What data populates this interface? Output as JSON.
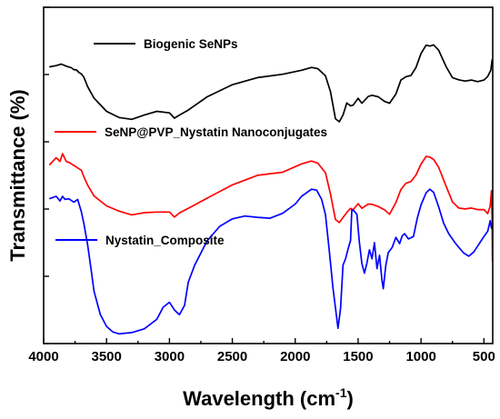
{
  "chart_data": {
    "type": "line",
    "xlabel": "Wavelength (cm",
    "xlabel_sup": "-1",
    "xlabel_end": ")",
    "ylabel": "Transmittance (%)",
    "xlim": [
      4000,
      430
    ],
    "ylim": [
      0,
      100
    ],
    "x_reversed": true,
    "y_tick_labels": false,
    "grid": false,
    "legend": "inline",
    "x_ticks": [
      4000,
      3500,
      3000,
      2500,
      2000,
      1500,
      1000,
      500
    ],
    "x_tick_labels": [
      "4000",
      "3500",
      "3000",
      "2500",
      "2000",
      "1500",
      "1000",
      "500"
    ],
    "series": [
      {
        "name": "Biogenic SeNPs",
        "color": "#000000",
        "points": [
          [
            3950,
            87.2
          ],
          [
            3900,
            87.6
          ],
          [
            3860,
            88.1
          ],
          [
            3820,
            87.4
          ],
          [
            3780,
            86.9
          ],
          [
            3760,
            86.3
          ],
          [
            3740,
            86.2
          ],
          [
            3720,
            85.4
          ],
          [
            3700,
            84.9
          ],
          [
            3680,
            83.8
          ],
          [
            3650,
            80.8
          ],
          [
            3600,
            77.1
          ],
          [
            3500,
            72.8
          ],
          [
            3400,
            70.8
          ],
          [
            3300,
            70.2
          ],
          [
            3200,
            71.6
          ],
          [
            3100,
            72.8
          ],
          [
            3000,
            72.3
          ],
          [
            2960,
            70.6
          ],
          [
            2920,
            71.6
          ],
          [
            2850,
            73.2
          ],
          [
            2700,
            77.5
          ],
          [
            2500,
            81.4
          ],
          [
            2300,
            83.7
          ],
          [
            2100,
            84.8
          ],
          [
            1950,
            86.1
          ],
          [
            1870,
            87.0
          ],
          [
            1820,
            86.6
          ],
          [
            1760,
            84.3
          ],
          [
            1720,
            79.2
          ],
          [
            1680,
            70.4
          ],
          [
            1650,
            69.4
          ],
          [
            1620,
            71.6
          ],
          [
            1590,
            75.5
          ],
          [
            1560,
            74.6
          ],
          [
            1540,
            74.8
          ],
          [
            1500,
            77.0
          ],
          [
            1470,
            75.4
          ],
          [
            1420,
            77.6
          ],
          [
            1390,
            78.0
          ],
          [
            1340,
            77.5
          ],
          [
            1290,
            76.0
          ],
          [
            1250,
            75.4
          ],
          [
            1200,
            78.4
          ],
          [
            1160,
            82.9
          ],
          [
            1120,
            84.0
          ],
          [
            1080,
            84.4
          ],
          [
            1040,
            87.0
          ],
          [
            1000,
            91.5
          ],
          [
            960,
            94.2
          ],
          [
            930,
            93.9
          ],
          [
            900,
            94.3
          ],
          [
            860,
            92.6
          ],
          [
            800,
            87.2
          ],
          [
            750,
            83.7
          ],
          [
            700,
            83.0
          ],
          [
            650,
            82.6
          ],
          [
            600,
            82.9
          ],
          [
            550,
            82.4
          ],
          [
            500,
            82.9
          ],
          [
            470,
            84.1
          ],
          [
            445,
            86.1
          ],
          [
            435,
            89.4
          ]
        ]
      },
      {
        "name": "SeNP@PVP_Nystatin Nanoconjugates",
        "color": "#ff0000",
        "points": [
          [
            3950,
            55.6
          ],
          [
            3900,
            57.8
          ],
          [
            3870,
            56.6
          ],
          [
            3850,
            59.1
          ],
          [
            3820,
            56.6
          ],
          [
            3790,
            56.1
          ],
          [
            3760,
            55.3
          ],
          [
            3730,
            54.5
          ],
          [
            3700,
            53.7
          ],
          [
            3680,
            51.6
          ],
          [
            3650,
            48.9
          ],
          [
            3600,
            45.4
          ],
          [
            3500,
            42.2
          ],
          [
            3400,
            40.5
          ],
          [
            3300,
            39.3
          ],
          [
            3200,
            40.0
          ],
          [
            3100,
            40.2
          ],
          [
            3000,
            40.2
          ],
          [
            2960,
            38.6
          ],
          [
            2920,
            39.9
          ],
          [
            2850,
            41.4
          ],
          [
            2700,
            44.7
          ],
          [
            2500,
            49.0
          ],
          [
            2300,
            52.1
          ],
          [
            2100,
            53.1
          ],
          [
            1950,
            55.8
          ],
          [
            1870,
            56.7
          ],
          [
            1820,
            56.0
          ],
          [
            1760,
            52.9
          ],
          [
            1720,
            46.1
          ],
          [
            1680,
            37.8
          ],
          [
            1650,
            36.8
          ],
          [
            1620,
            38.4
          ],
          [
            1590,
            40.1
          ],
          [
            1560,
            41.4
          ],
          [
            1540,
            40.9
          ],
          [
            1500,
            42.9
          ],
          [
            1470,
            41.4
          ],
          [
            1420,
            42.8
          ],
          [
            1390,
            42.7
          ],
          [
            1340,
            42.0
          ],
          [
            1290,
            40.9
          ],
          [
            1250,
            39.5
          ],
          [
            1200,
            43.3
          ],
          [
            1160,
            47.5
          ],
          [
            1120,
            49.5
          ],
          [
            1080,
            50.1
          ],
          [
            1040,
            52.2
          ],
          [
            1000,
            55.7
          ],
          [
            960,
            58.2
          ],
          [
            930,
            58.0
          ],
          [
            900,
            57.2
          ],
          [
            860,
            54.7
          ],
          [
            800,
            48.5
          ],
          [
            750,
            43.5
          ],
          [
            700,
            41.5
          ],
          [
            650,
            41.2
          ],
          [
            600,
            41.5
          ],
          [
            550,
            41.0
          ],
          [
            500,
            41.0
          ],
          [
            470,
            39.7
          ],
          [
            450,
            42.1
          ],
          [
            440,
            47.1
          ],
          [
            435,
            38.0
          ],
          [
            432,
            24.4
          ]
        ]
      },
      {
        "name": "Nystatin_Composite",
        "color": "#0000ff",
        "points": [
          [
            3950,
            44.6
          ],
          [
            3900,
            45.3
          ],
          [
            3870,
            43.8
          ],
          [
            3850,
            45.3
          ],
          [
            3830,
            44.3
          ],
          [
            3800,
            44.5
          ],
          [
            3760,
            43.4
          ],
          [
            3730,
            44.3
          ],
          [
            3700,
            40.3
          ],
          [
            3680,
            36.4
          ],
          [
            3650,
            29.6
          ],
          [
            3620,
            20.8
          ],
          [
            3600,
            14.6
          ],
          [
            3550,
            7.1
          ],
          [
            3500,
            3.2
          ],
          [
            3450,
            1.4
          ],
          [
            3400,
            0.8
          ],
          [
            3300,
            1.2
          ],
          [
            3200,
            2.4
          ],
          [
            3100,
            5.5
          ],
          [
            3050,
            9.4
          ],
          [
            3000,
            11.0
          ],
          [
            2960,
            8.5
          ],
          [
            2920,
            7.0
          ],
          [
            2880,
            10.0
          ],
          [
            2850,
            17.5
          ],
          [
            2800,
            23.0
          ],
          [
            2700,
            30.9
          ],
          [
            2600,
            35.6
          ],
          [
            2500,
            38.0
          ],
          [
            2400,
            38.9
          ],
          [
            2300,
            38.5
          ],
          [
            2200,
            38.2
          ],
          [
            2100,
            39.8
          ],
          [
            2000,
            42.8
          ],
          [
            1950,
            45.3
          ],
          [
            1870,
            47.6
          ],
          [
            1830,
            47.3
          ],
          [
            1790,
            44.3
          ],
          [
            1760,
            39.4
          ],
          [
            1730,
            28.0
          ],
          [
            1700,
            15.6
          ],
          [
            1680,
            9.2
          ],
          [
            1660,
            2.6
          ],
          [
            1640,
            9.0
          ],
          [
            1620,
            23.0
          ],
          [
            1600,
            25.1
          ],
          [
            1580,
            28.3
          ],
          [
            1560,
            31.0
          ],
          [
            1550,
            40.9
          ],
          [
            1530,
            40.5
          ],
          [
            1510,
            39.4
          ],
          [
            1490,
            30.5
          ],
          [
            1470,
            23.5
          ],
          [
            1450,
            20.4
          ],
          [
            1430,
            23.7
          ],
          [
            1410,
            28.0
          ],
          [
            1390,
            25.1
          ],
          [
            1370,
            30.3
          ],
          [
            1350,
            21.9
          ],
          [
            1330,
            26.2
          ],
          [
            1310,
            18.1
          ],
          [
            1300,
            15.4
          ],
          [
            1280,
            23.0
          ],
          [
            1260,
            27.1
          ],
          [
            1230,
            28.7
          ],
          [
            1200,
            32.0
          ],
          [
            1170,
            30.0
          ],
          [
            1150,
            32.5
          ],
          [
            1130,
            33.2
          ],
          [
            1100,
            31.5
          ],
          [
            1060,
            32.3
          ],
          [
            1030,
            38.2
          ],
          [
            1000,
            42.5
          ],
          [
            960,
            46.4
          ],
          [
            930,
            47.6
          ],
          [
            900,
            46.6
          ],
          [
            860,
            41.9
          ],
          [
            820,
            36.6
          ],
          [
            780,
            33.2
          ],
          [
            730,
            30.3
          ],
          [
            700,
            28.8
          ],
          [
            660,
            26.9
          ],
          [
            620,
            25.9
          ],
          [
            580,
            27.3
          ],
          [
            540,
            29.8
          ],
          [
            500,
            32.3
          ],
          [
            470,
            34.0
          ],
          [
            450,
            37.4
          ],
          [
            440,
            35.0
          ]
        ]
      }
    ],
    "legend_entries": [
      {
        "label": "Biogenic SeNPs",
        "color": "#000000"
      },
      {
        "label": "SeNP@PVP_Nystatin Nanoconjugates",
        "color": "#ff0000"
      },
      {
        "label": "Nystatin_Composite",
        "color": "#0000ff"
      }
    ]
  }
}
